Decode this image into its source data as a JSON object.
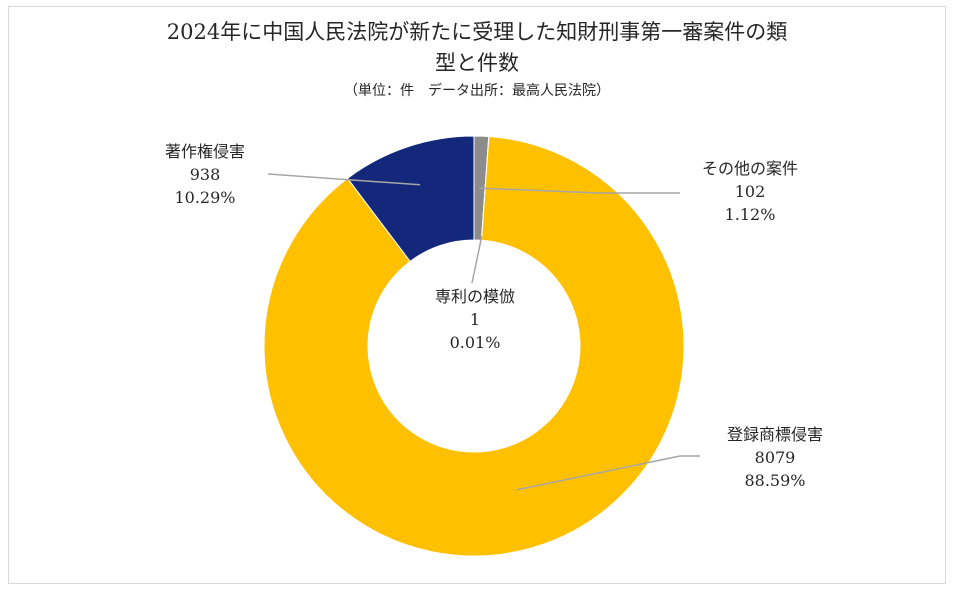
{
  "chart_data": {
    "type": "pie",
    "title": "2024年に中国人民法院が新たに受理した知財刑事第一審案件の類",
    "title_line2": "型と件数",
    "subtitle": "（単位：件　データ出所：最高人民法院）",
    "series": [
      {
        "name": "著作権侵害",
        "value": 938,
        "percent": "10.29%",
        "color": "#13287a"
      },
      {
        "name": "その他の案件",
        "value": 102,
        "percent": "1.12%",
        "color": "#8c8c8c"
      },
      {
        "name": "専利の模倣",
        "value": 1,
        "percent": "0.01%",
        "color": "#5b9bd5"
      },
      {
        "name": "登録商標侵害",
        "value": 8079,
        "percent": "88.59%",
        "color": "#ffc000"
      }
    ]
  }
}
